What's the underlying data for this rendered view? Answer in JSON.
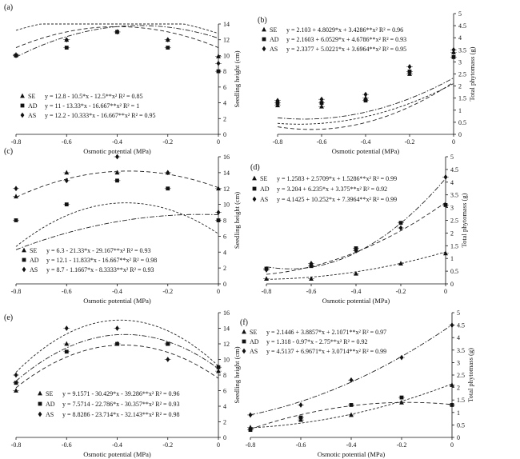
{
  "chart_data": [
    {
      "panel": "(a)",
      "type": "scatter",
      "xlabel": "Osmotic potential (MPa)",
      "ylabel": "Seedling height (cm)",
      "xlim": [
        -0.8,
        0
      ],
      "ylim": [
        0,
        14
      ],
      "xticks": [
        "-0.8",
        "-0.6",
        "-0.4",
        "-0.2",
        "0"
      ],
      "yticks": [
        "0",
        "2",
        "4",
        "6",
        "8",
        "10",
        "12",
        "14"
      ],
      "legend_position": "bottom-left",
      "series": [
        {
          "name": "SE",
          "marker": "triangle",
          "x": [
            -0.8,
            -0.6,
            -0.4,
            -0.2,
            0
          ],
          "y": [
            10.1,
            12.0,
            13.0,
            12.0,
            9.9
          ],
          "fit": "y = 12.8 - 10.5*x - 12.5**x² R² = 0.85",
          "coef": [
            12.8,
            -10.5,
            -12.5
          ]
        },
        {
          "name": "AD",
          "marker": "square",
          "x": [
            -0.8,
            -0.6,
            -0.4,
            -0.2,
            0
          ],
          "y": [
            10.0,
            11.0,
            13.0,
            11.0,
            8.0
          ],
          "fit": "y = 11 - 13.33*x - 16.667**x² R² = 1",
          "coef": [
            11,
            -13.33,
            -16.667
          ]
        },
        {
          "name": "AS",
          "marker": "diamond",
          "x": [
            -0.8,
            -0.6,
            -0.4,
            -0.2,
            0
          ],
          "y": [
            10.0,
            12.0,
            13.0,
            12.0,
            9.0
          ],
          "fit": "y = 12.2 - 10.333*x - 16.667**x² R² = 0.95",
          "coef": [
            12.2,
            -10.333,
            -16.667
          ]
        }
      ]
    },
    {
      "panel": "(b)",
      "type": "scatter",
      "xlabel": "Osmotic potential (MPa)",
      "ylabel": "Total phytomass (g)",
      "xlim": [
        -0.8,
        0
      ],
      "ylim": [
        0,
        5
      ],
      "xticks": [
        "-0.8",
        "-0.6",
        "-0.4",
        "-0.2",
        "0"
      ],
      "yticks": [
        "0",
        "0.5",
        "1",
        "1.5",
        "2",
        "2.5",
        "3",
        "3.5",
        "4",
        "4.5",
        "5"
      ],
      "legend_position": "top-left",
      "series": [
        {
          "name": "SE",
          "marker": "triangle",
          "x": [
            -0.8,
            -0.6,
            -0.4,
            -0.2,
            0
          ],
          "y": [
            1.2,
            1.15,
            1.5,
            2.5,
            3.4
          ],
          "fit": "y = 2.103 + 4.8029*x + 3.4286**x² R² = 0.96",
          "coef": [
            2.103,
            4.8029,
            3.4286
          ]
        },
        {
          "name": "AD",
          "marker": "square",
          "x": [
            -0.8,
            -0.6,
            -0.4,
            -0.2,
            0
          ],
          "y": [
            1.3,
            1.3,
            1.4,
            2.6,
            3.2
          ],
          "fit": "y = 2.1603 + 6.0529*x + 4.6786**x² R² = 0.93",
          "coef": [
            2.1603,
            6.0529,
            4.6786
          ]
        },
        {
          "name": "AS",
          "marker": "diamond",
          "x": [
            -0.8,
            -0.6,
            -0.4,
            -0.2,
            0
          ],
          "y": [
            1.4,
            1.45,
            1.65,
            2.8,
            3.5
          ],
          "fit": "y = 2.3377 + 5.0221*x + 3.6964**x² R² = 0.95",
          "coef": [
            2.3377,
            5.0221,
            3.6964
          ]
        }
      ]
    },
    {
      "panel": "(c)",
      "type": "scatter",
      "xlabel": "Osmotic potential (MPa)",
      "ylabel": "Seedling height (cm)",
      "xlim": [
        -0.8,
        0
      ],
      "ylim": [
        0,
        16
      ],
      "xticks": [
        "-0.8",
        "-0.6",
        "-0.4",
        "-0.2",
        "0"
      ],
      "yticks": [
        "0",
        "2",
        "4",
        "6",
        "8",
        "10",
        "12",
        "14",
        "16"
      ],
      "legend_position": "bottom-left",
      "series": [
        {
          "name": "SE",
          "marker": "triangle",
          "x": [
            -0.8,
            -0.6,
            -0.4,
            -0.2,
            0
          ],
          "y": [
            11.0,
            14.0,
            14.0,
            14.0,
            12.0
          ],
          "fit": "y = 6.3 - 21.33*x - 29.167**x² R² = 0.93",
          "coef": [
            6.3,
            -21.33,
            -29.167
          ]
        },
        {
          "name": "AD",
          "marker": "square",
          "x": [
            -0.8,
            -0.6,
            -0.4,
            -0.2,
            0
          ],
          "y": [
            8.0,
            10.0,
            13.0,
            12.0,
            8.0
          ],
          "fit": "y = 12.1 - 11.833*x - 16.667**x² R² = 0.98",
          "coef": [
            12.1,
            -11.833,
            -16.667
          ]
        },
        {
          "name": "AS",
          "marker": "diamond",
          "x": [
            -0.8,
            -0.6,
            -0.4,
            -0.2,
            0
          ],
          "y": [
            12.0,
            13.0,
            16.0,
            14.0,
            9.0
          ],
          "fit": "y = 8.7 - 1.1667*x - 8.3333**x² R² = 0.93",
          "coef": [
            8.7,
            -1.1667,
            -8.3333
          ]
        }
      ]
    },
    {
      "panel": "(d)",
      "type": "scatter",
      "xlabel": "Osmotic potential (MPa)",
      "ylabel": "Total phytomass (g)",
      "xlim": [
        -0.8,
        0
      ],
      "ylim": [
        0,
        5
      ],
      "xticks": [
        "-0.8",
        "-0.6",
        "-0.4",
        "-0.2",
        "0"
      ],
      "yticks": [
        "0",
        "0.5",
        "1",
        "1.5",
        "2",
        "2.5",
        "3",
        "3.5",
        "4",
        "4.5",
        "5"
      ],
      "legend_position": "top-left",
      "series": [
        {
          "name": "SE",
          "marker": "triangle",
          "x": [
            -0.8,
            -0.6,
            -0.4,
            -0.2,
            0
          ],
          "y": [
            0.2,
            0.2,
            0.4,
            0.8,
            1.2
          ],
          "fit": "y = 1.2583 + 2.5709*x + 1.5286**x² R² = 0.99",
          "coef": [
            1.2583,
            2.5709,
            1.5286
          ]
        },
        {
          "name": "AD",
          "marker": "square",
          "x": [
            -0.8,
            -0.6,
            -0.4,
            -0.2,
            0
          ],
          "y": [
            0.6,
            0.7,
            1.4,
            2.4,
            3.1
          ],
          "fit": "y = 3.204 + 6.235*x + 3.375**x² R² = 0.92",
          "coef": [
            3.204,
            6.235,
            3.375
          ]
        },
        {
          "name": "AS",
          "marker": "diamond",
          "x": [
            -0.8,
            -0.6,
            -0.4,
            -0.2,
            0
          ],
          "y": [
            0.55,
            0.8,
            1.3,
            2.2,
            4.2
          ],
          "fit": "y = 4.1425 + 10.252*x + 7.3964**x² R² = 0.99",
          "coef": [
            4.1425,
            10.252,
            7.3964
          ]
        }
      ]
    },
    {
      "panel": "(e)",
      "type": "scatter",
      "xlabel": "Osmotic potential (MPa)",
      "ylabel": "Seedling height (cm)",
      "xlim": [
        -0.8,
        0
      ],
      "ylim": [
        0,
        16
      ],
      "xticks": [
        "-0.8",
        "-0.6",
        "-0.4",
        "-0.2",
        "0"
      ],
      "yticks": [
        "0",
        "2",
        "4",
        "6",
        "8",
        "10",
        "12",
        "14",
        "16"
      ],
      "legend_position": "bottom-center",
      "series": [
        {
          "name": "SE",
          "marker": "triangle",
          "x": [
            -0.8,
            -0.6,
            -0.4,
            -0.2,
            0
          ],
          "y": [
            6.0,
            12.0,
            12.0,
            12.0,
            8.5
          ],
          "fit": "y = 9.1571 - 30.429*x - 39.286**x² R² = 0.96",
          "coef": [
            9.1571,
            -30.429,
            -39.286
          ]
        },
        {
          "name": "AD",
          "marker": "square",
          "x": [
            -0.8,
            -0.6,
            -0.4,
            -0.2,
            0
          ],
          "y": [
            7.0,
            11.0,
            12.0,
            12.0,
            9.0
          ],
          "fit": "y = 7.5714 - 22.786*x - 30.357**x² R² = 0.93",
          "coef": [
            7.5714,
            -22.786,
            -30.357
          ]
        },
        {
          "name": "AS",
          "marker": "diamond",
          "x": [
            -0.8,
            -0.6,
            -0.4,
            -0.2,
            0
          ],
          "y": [
            8.0,
            14.0,
            14.0,
            10.0,
            9.0
          ],
          "fit": "y = 8.8286 - 23.714*x - 32.143**x² R² = 0.98",
          "coef": [
            8.8286,
            -23.714,
            -32.143
          ]
        }
      ]
    },
    {
      "panel": "(f)",
      "type": "scatter",
      "xlabel": "Osmotic potential (MPa)",
      "ylabel": "Total phytomass (g)",
      "xlim": [
        -0.8,
        0
      ],
      "ylim": [
        0,
        5
      ],
      "xticks": [
        "-0.8",
        "-0.6",
        "-0.4",
        "-0.2",
        "0"
      ],
      "yticks": [
        "0",
        "0.5",
        "1",
        "1.5",
        "2",
        "2.5",
        "3",
        "3.5",
        "4",
        "4.5",
        "5"
      ],
      "legend_position": "top-left",
      "series": [
        {
          "name": "SE",
          "marker": "triangle",
          "x": [
            -0.8,
            -0.6,
            -0.4,
            -0.2,
            0
          ],
          "y": [
            0.4,
            0.7,
            0.9,
            1.4,
            2.1
          ],
          "fit": "y = 2.1446 + 3.8857*x + 2.1071**x² R² = 0.97",
          "coef": [
            2.1446,
            3.8857,
            2.1071
          ]
        },
        {
          "name": "AD",
          "marker": "square",
          "x": [
            -0.8,
            -0.6,
            -0.4,
            -0.2,
            0
          ],
          "y": [
            0.3,
            0.8,
            1.3,
            1.6,
            1.3
          ],
          "fit": "y = 1.318 - 0.97*x - 2.75**x² R² = 0.92",
          "coef": [
            1.318,
            -0.97,
            -2.75
          ]
        },
        {
          "name": "AS",
          "marker": "diamond",
          "x": [
            -0.8,
            -0.6,
            -0.4,
            -0.2,
            0
          ],
          "y": [
            0.9,
            1.3,
            2.3,
            3.2,
            4.5
          ],
          "fit": "y = 4.5137 + 6.9671*x + 3.0714**x² R² = 0.99",
          "coef": [
            4.5137,
            6.9671,
            3.0714
          ]
        }
      ]
    }
  ]
}
